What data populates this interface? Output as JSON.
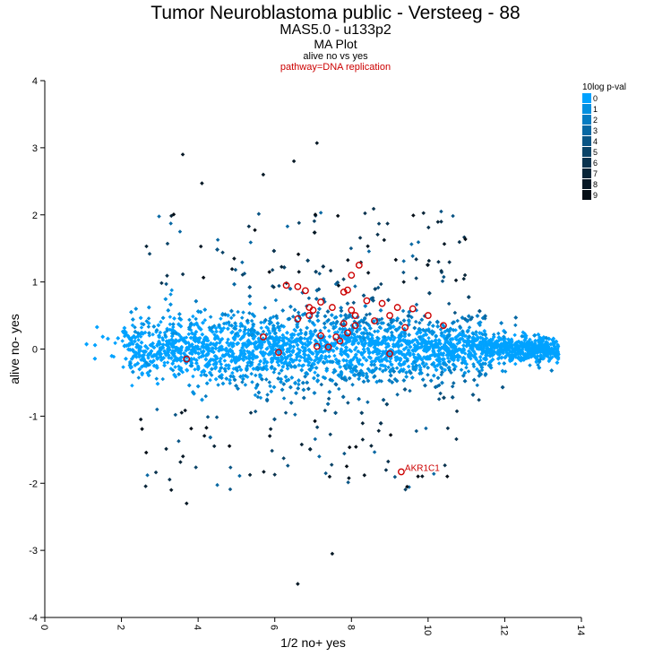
{
  "header": {
    "title": "Tumor Neuroblastoma public - Versteeg - 88",
    "subtitle": "MAS5.0 - u133p2",
    "plot_type": "MA Plot",
    "comparison": "alive no vs yes",
    "pathway": "pathway=DNA replication"
  },
  "chart_data": {
    "type": "scatter",
    "xlabel": "1/2 no+ yes",
    "ylabel": "alive no- yes",
    "xlim": [
      0,
      14
    ],
    "ylim": [
      -4,
      4
    ],
    "x_ticks": [
      "0",
      "2",
      "4",
      "6",
      "8",
      "10",
      "12",
      "14"
    ],
    "y_ticks": [
      "4",
      "3",
      "2",
      "1",
      "0",
      "-1",
      "-2",
      "-3",
      "-4"
    ],
    "grid": false,
    "legend": {
      "title": "10log p-val",
      "placement": "top-right",
      "entries": [
        "0",
        "1",
        "2",
        "3",
        "4",
        "5",
        "6",
        "7",
        "8",
        "9"
      ],
      "colors": [
        "#00a2ff",
        "#0390e0",
        "#067cc2",
        "#0868a3",
        "#0a5585",
        "#0b4468",
        "#0a334f",
        "#082538",
        "#061825",
        "#040e16"
      ]
    },
    "background_points": {
      "description_hidden": true,
      "sample_points": [
        {
          "x": 7.1,
          "y": 3.07
        },
        {
          "x": 6.5,
          "y": 2.8
        },
        {
          "x": 5.7,
          "y": 2.6
        },
        {
          "x": 3.6,
          "y": 2.9
        },
        {
          "x": 4.1,
          "y": 2.47
        },
        {
          "x": 6.6,
          "y": -3.5
        },
        {
          "x": 7.5,
          "y": -3.05
        },
        {
          "x": 3.7,
          "y": -2.3
        },
        {
          "x": 3.3,
          "y": -2.1
        }
      ]
    },
    "highlighted_series": {
      "name": "pathway=DNA replication",
      "color": "#cc0000",
      "points": [
        {
          "x": 8.2,
          "y": 1.25
        },
        {
          "x": 8.0,
          "y": 1.1
        },
        {
          "x": 6.3,
          "y": 0.95
        },
        {
          "x": 6.6,
          "y": 0.93
        },
        {
          "x": 6.8,
          "y": 0.87
        },
        {
          "x": 7.8,
          "y": 0.85
        },
        {
          "x": 7.9,
          "y": 0.88
        },
        {
          "x": 7.2,
          "y": 0.7
        },
        {
          "x": 8.4,
          "y": 0.72
        },
        {
          "x": 8.8,
          "y": 0.68
        },
        {
          "x": 9.2,
          "y": 0.62
        },
        {
          "x": 9.6,
          "y": 0.6
        },
        {
          "x": 6.9,
          "y": 0.62
        },
        {
          "x": 7.0,
          "y": 0.58
        },
        {
          "x": 7.5,
          "y": 0.62
        },
        {
          "x": 8.0,
          "y": 0.58
        },
        {
          "x": 8.1,
          "y": 0.5
        },
        {
          "x": 9.0,
          "y": 0.5
        },
        {
          "x": 8.6,
          "y": 0.42
        },
        {
          "x": 6.6,
          "y": 0.45
        },
        {
          "x": 6.9,
          "y": 0.5
        },
        {
          "x": 7.8,
          "y": 0.38
        },
        {
          "x": 8.1,
          "y": 0.35
        },
        {
          "x": 9.4,
          "y": 0.32
        },
        {
          "x": 10.0,
          "y": 0.5
        },
        {
          "x": 10.4,
          "y": 0.35
        },
        {
          "x": 5.7,
          "y": 0.18
        },
        {
          "x": 7.2,
          "y": 0.2
        },
        {
          "x": 7.6,
          "y": 0.18
        },
        {
          "x": 7.9,
          "y": 0.24
        },
        {
          "x": 7.7,
          "y": 0.12
        },
        {
          "x": 7.1,
          "y": 0.04
        },
        {
          "x": 7.4,
          "y": 0.03
        },
        {
          "x": 6.1,
          "y": -0.05
        },
        {
          "x": 9.0,
          "y": -0.07
        },
        {
          "x": 3.7,
          "y": -0.15
        },
        {
          "x": 9.3,
          "y": -1.83
        }
      ]
    },
    "annotations": [
      {
        "label": "AKR1C1",
        "x": 9.3,
        "y": -1.83
      }
    ]
  }
}
